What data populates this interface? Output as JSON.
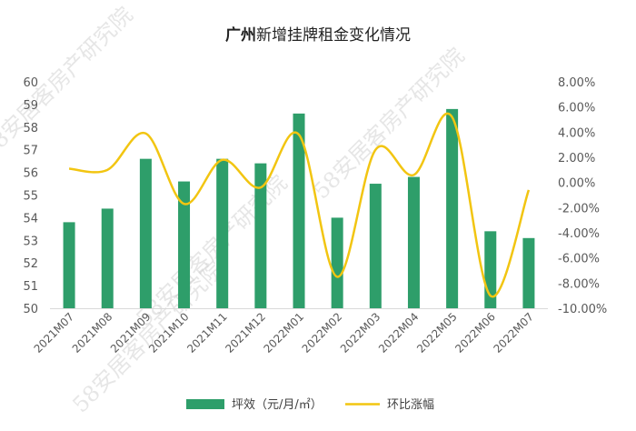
{
  "chart_data": {
    "type": "bar",
    "title_bold": "广州",
    "title_rest": "新增挂牌租金变化情况",
    "categories": [
      "2021M07",
      "2021M08",
      "2021M09",
      "2021M10",
      "2021M11",
      "2021M12",
      "2022M01",
      "2022M02",
      "2022M03",
      "2022M04",
      "2022M05",
      "2022M06",
      "2022M07"
    ],
    "series": [
      {
        "name": "坪效（元/月/㎡）",
        "type": "bar",
        "axis": "left",
        "color": "#2e9e6a",
        "values": [
          53.8,
          54.4,
          56.6,
          55.6,
          56.6,
          56.4,
          58.6,
          54.0,
          55.5,
          55.8,
          58.8,
          53.4,
          53.1
        ]
      },
      {
        "name": "环比涨幅",
        "type": "line",
        "axis": "right",
        "color": "#f2c511",
        "values": [
          1.1,
          1.0,
          3.9,
          -1.7,
          1.8,
          -0.4,
          3.8,
          -7.5,
          2.6,
          0.6,
          5.2,
          -9.0,
          -0.6
        ]
      }
    ],
    "y_left": {
      "min": 50,
      "max": 60,
      "step": 1,
      "ticks": [
        "50",
        "51",
        "52",
        "53",
        "54",
        "55",
        "56",
        "57",
        "58",
        "59",
        "60"
      ]
    },
    "y_right": {
      "min": -10,
      "max": 8,
      "step": 2,
      "ticks": [
        "-10.00%",
        "-8.00%",
        "-6.00%",
        "-4.00%",
        "-2.00%",
        "0.00%",
        "2.00%",
        "4.00%",
        "6.00%",
        "8.00%"
      ]
    },
    "grid": false,
    "legend_position": "bottom",
    "watermark": "58安居客房产研究院"
  }
}
